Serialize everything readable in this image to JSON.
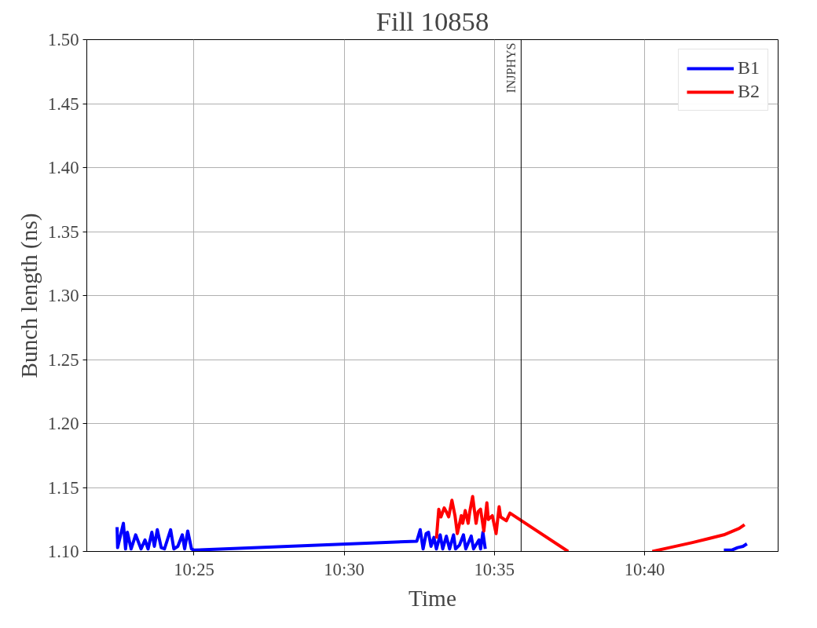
{
  "chart_data": {
    "type": "line",
    "title": "Fill 10858",
    "xlabel": "Time",
    "ylabel": "Bunch length (ns)",
    "xlim": [
      10.3572,
      10.7408
    ],
    "xticks": [
      {
        "value": 10.4167,
        "label": "10:25"
      },
      {
        "value": 10.5,
        "label": "10:30"
      },
      {
        "value": 10.5833,
        "label": "10:35"
      },
      {
        "value": 10.6667,
        "label": "10:40"
      }
    ],
    "ylim": [
      1.1,
      1.5
    ],
    "yticks": [
      {
        "value": 1.1,
        "label": "1.10"
      },
      1.15,
      {
        "value": 1.2,
        "label": "1.20"
      },
      1.25,
      {
        "value": 1.3,
        "label": "1.30"
      },
      1.35,
      {
        "value": 1.4,
        "label": "1.40"
      },
      1.45,
      {
        "value": 1.5,
        "label": "1.50"
      }
    ],
    "grid": true,
    "legend": "top right",
    "line_style": "solid",
    "marker": "none",
    "ref_lines": [
      {
        "axis": "x",
        "value": 10.5982,
        "label": "INJPHYS",
        "color": "#000000"
      }
    ],
    "series": [
      {
        "name": "B1",
        "color": "#0000ff",
        "x": [
          10.374,
          10.3743,
          10.3775,
          10.3787,
          10.3797,
          10.3818,
          10.3843,
          10.3873,
          10.3895,
          10.3912,
          10.3933,
          10.3947,
          10.3963,
          10.3985,
          10.4003,
          10.4037,
          10.4055,
          10.4077,
          10.4102,
          10.4115,
          10.4132,
          10.4153,
          10.4167,
          10.5403,
          10.5422,
          10.5438,
          10.5455,
          10.5468,
          10.5482,
          10.5498,
          10.5512,
          10.5533,
          10.5547,
          10.5567,
          10.5585,
          10.5607,
          10.5618,
          10.564,
          10.5662,
          10.5675,
          10.5705,
          10.5718,
          10.5748,
          10.5757,
          10.577,
          10.5783,
          10.65,
          10.7107,
          10.715,
          10.7183,
          10.7213,
          10.7235
        ],
        "values": [
          1.119,
          1.103,
          1.122,
          1.102,
          1.115,
          1.102,
          1.113,
          1.102,
          1.109,
          1.102,
          1.115,
          1.104,
          1.117,
          1.103,
          1.102,
          1.117,
          1.102,
          1.104,
          1.113,
          1.102,
          1.116,
          1.102,
          1.101,
          1.108,
          1.117,
          1.102,
          1.114,
          1.115,
          1.104,
          1.111,
          1.102,
          1.113,
          1.102,
          1.112,
          1.102,
          1.113,
          1.102,
          1.105,
          1.113,
          1.102,
          1.112,
          1.102,
          1.109,
          1.102,
          1.115,
          1.102,
          null,
          1.101,
          1.101,
          1.103,
          1.104,
          1.106
        ]
      },
      {
        "name": "B2",
        "color": "#ff0000",
        "x": [
          10.5512,
          10.5525,
          10.5537,
          10.5555,
          10.5567,
          10.558,
          10.5598,
          10.5615,
          10.5628,
          10.565,
          10.5658,
          10.5672,
          10.5688,
          10.5697,
          10.5713,
          10.5732,
          10.5743,
          10.5757,
          10.5775,
          10.5792,
          10.58,
          10.5822,
          10.5843,
          10.586,
          10.5868,
          10.59,
          10.592,
          10.6243,
          10.65,
          10.671,
          10.6805,
          10.6933,
          10.702,
          10.7107,
          10.7192,
          10.7222
        ],
        "values": [
          1.11,
          1.133,
          1.127,
          1.134,
          1.131,
          1.127,
          1.14,
          1.128,
          1.114,
          1.128,
          1.122,
          1.132,
          1.122,
          1.131,
          1.143,
          1.122,
          1.131,
          1.133,
          1.116,
          1.138,
          1.125,
          1.128,
          1.114,
          1.135,
          1.127,
          1.124,
          1.13,
          1.1,
          null,
          1.1,
          1.103,
          1.107,
          1.11,
          1.113,
          1.118,
          1.121
        ]
      }
    ]
  }
}
